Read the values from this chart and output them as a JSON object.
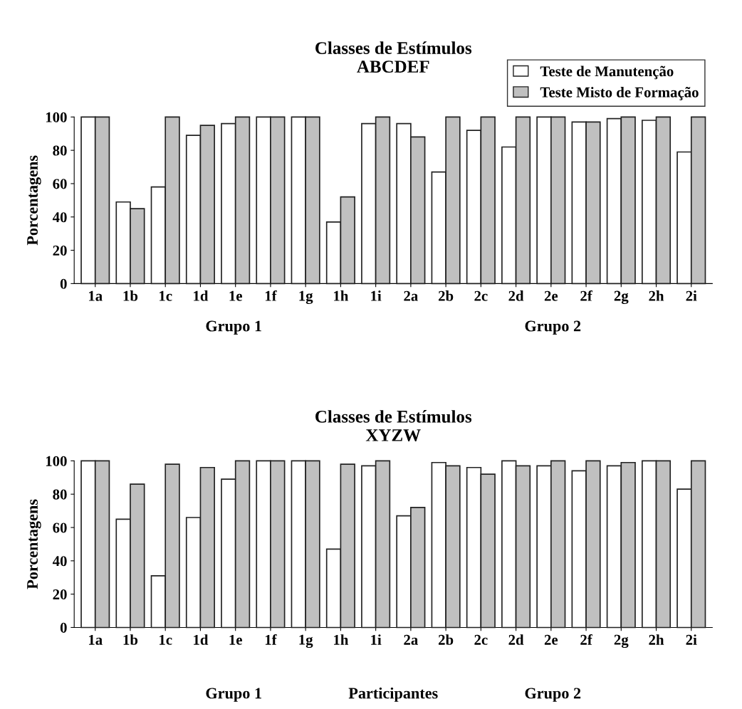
{
  "chart_data": [
    {
      "type": "bar",
      "title": "Classes de Estímulos\nABCDEF",
      "ylabel": "Porcentagens",
      "categories": [
        "1a",
        "1b",
        "1c",
        "1d",
        "1e",
        "1f",
        "1g",
        "1h",
        "1i",
        "2a",
        "2b",
        "2c",
        "2d",
        "2e",
        "2f",
        "2g",
        "2h",
        "2i"
      ],
      "series": [
        {
          "name": "Teste de Manutenção",
          "color": "#ffffff",
          "values": [
            100,
            49,
            58,
            89,
            96,
            100,
            100,
            37,
            96,
            96,
            67,
            92,
            82,
            100,
            97,
            99,
            98,
            79
          ]
        },
        {
          "name": "Teste Misto de Formação",
          "color": "#c0c0c0",
          "values": [
            100,
            45,
            100,
            95,
            100,
            100,
            100,
            52,
            100,
            88,
            100,
            100,
            100,
            100,
            97,
            100,
            100,
            100
          ]
        }
      ],
      "ylim": [
        0,
        100
      ],
      "yticks": [
        0,
        20,
        40,
        60,
        80,
        100
      ],
      "grid": false,
      "legend": "top right",
      "annotations": [
        "Grupo 1",
        "Grupo 2"
      ]
    },
    {
      "type": "bar",
      "title": "Classes de Estímulos\nXYZW",
      "ylabel": "Porcentagens",
      "categories": [
        "1a",
        "1b",
        "1c",
        "1d",
        "1e",
        "1f",
        "1g",
        "1h",
        "1i",
        "2a",
        "2b",
        "2c",
        "2d",
        "2e",
        "2f",
        "2g",
        "2h",
        "2i"
      ],
      "series": [
        {
          "color": "#ffffff",
          "values": [
            100,
            65,
            31,
            66,
            89,
            100,
            100,
            47,
            97,
            67,
            99,
            96,
            100,
            97,
            94,
            97,
            100,
            83
          ]
        },
        {
          "color": "#c0c0c0",
          "values": [
            100,
            86,
            98,
            96,
            100,
            100,
            100,
            98,
            100,
            72,
            97,
            92,
            97,
            100,
            100,
            99,
            100,
            100
          ]
        }
      ],
      "ylim": [
        0,
        100
      ],
      "yticks": [
        0,
        20,
        40,
        60,
        80,
        100
      ],
      "grid": false,
      "annotations": [
        "Grupo 1",
        "Participantes",
        "Grupo 2"
      ]
    }
  ]
}
